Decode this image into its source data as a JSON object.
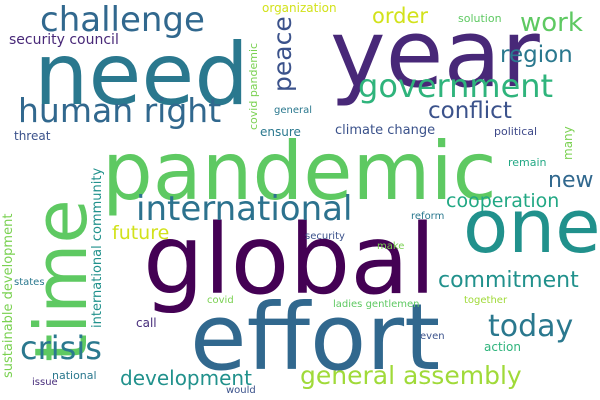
{
  "words": [
    {
      "text": "pandemic",
      "color": "#5ec962"
    },
    {
      "text": "global",
      "color": "#440154"
    },
    {
      "text": "effort",
      "color": "#31688e"
    },
    {
      "text": "need",
      "color": "#2a788e"
    },
    {
      "text": "year",
      "color": "#482878"
    },
    {
      "text": "time",
      "color": "#5ec962"
    },
    {
      "text": "one",
      "color": "#21918c"
    },
    {
      "text": "international",
      "color": "#2c728e"
    },
    {
      "text": "human right",
      "color": "#31688e"
    },
    {
      "text": "government",
      "color": "#2fb47c"
    },
    {
      "text": "challenge",
      "color": "#31688e"
    },
    {
      "text": "crisis",
      "color": "#2a788e"
    },
    {
      "text": "today",
      "color": "#2a788e"
    },
    {
      "text": "general assembly",
      "color": "#a0da39"
    },
    {
      "text": "development",
      "color": "#21918c"
    },
    {
      "text": "commitment",
      "color": "#21918c"
    },
    {
      "text": "cooperation",
      "color": "#22a884"
    },
    {
      "text": "peace",
      "color": "#3b528b"
    },
    {
      "text": "new",
      "color": "#31688e"
    },
    {
      "text": "region",
      "color": "#2a788e"
    },
    {
      "text": "work",
      "color": "#5ec962"
    },
    {
      "text": "order",
      "color": "#d2e21b"
    },
    {
      "text": "conflict",
      "color": "#3b528b"
    },
    {
      "text": "future",
      "color": "#d2e21b"
    },
    {
      "text": "security council",
      "color": "#482878"
    },
    {
      "text": "sustainable development",
      "color": "#7ad151"
    },
    {
      "text": "international community",
      "color": "#21918c"
    },
    {
      "text": "climate change",
      "color": "#3b528b"
    },
    {
      "text": "organization",
      "color": "#d2e21b"
    },
    {
      "text": "solution",
      "color": "#5ec962"
    },
    {
      "text": "covid pandemic",
      "color": "#7ad151"
    },
    {
      "text": "general",
      "color": "#2a788e"
    },
    {
      "text": "political",
      "color": "#3e4989"
    },
    {
      "text": "many",
      "color": "#7ad151"
    },
    {
      "text": "remain",
      "color": "#22a884"
    },
    {
      "text": "threat",
      "color": "#3b528b"
    },
    {
      "text": "ensure",
      "color": "#2a788e"
    },
    {
      "text": "security",
      "color": "#3b528b"
    },
    {
      "text": "make",
      "color": "#7ad151"
    },
    {
      "text": "reform",
      "color": "#2a788e"
    },
    {
      "text": "states",
      "color": "#2a788e"
    },
    {
      "text": "call",
      "color": "#472d7b"
    },
    {
      "text": "covid",
      "color": "#7ad151"
    },
    {
      "text": "ladies gentlemen",
      "color": "#5ec962"
    },
    {
      "text": "together",
      "color": "#a0da39"
    },
    {
      "text": "even",
      "color": "#3b528b"
    },
    {
      "text": "action",
      "color": "#2fb47c"
    },
    {
      "text": "national",
      "color": "#2a788e"
    },
    {
      "text": "issue",
      "color": "#472d7b"
    },
    {
      "text": "would",
      "color": "#3b528b"
    }
  ]
}
